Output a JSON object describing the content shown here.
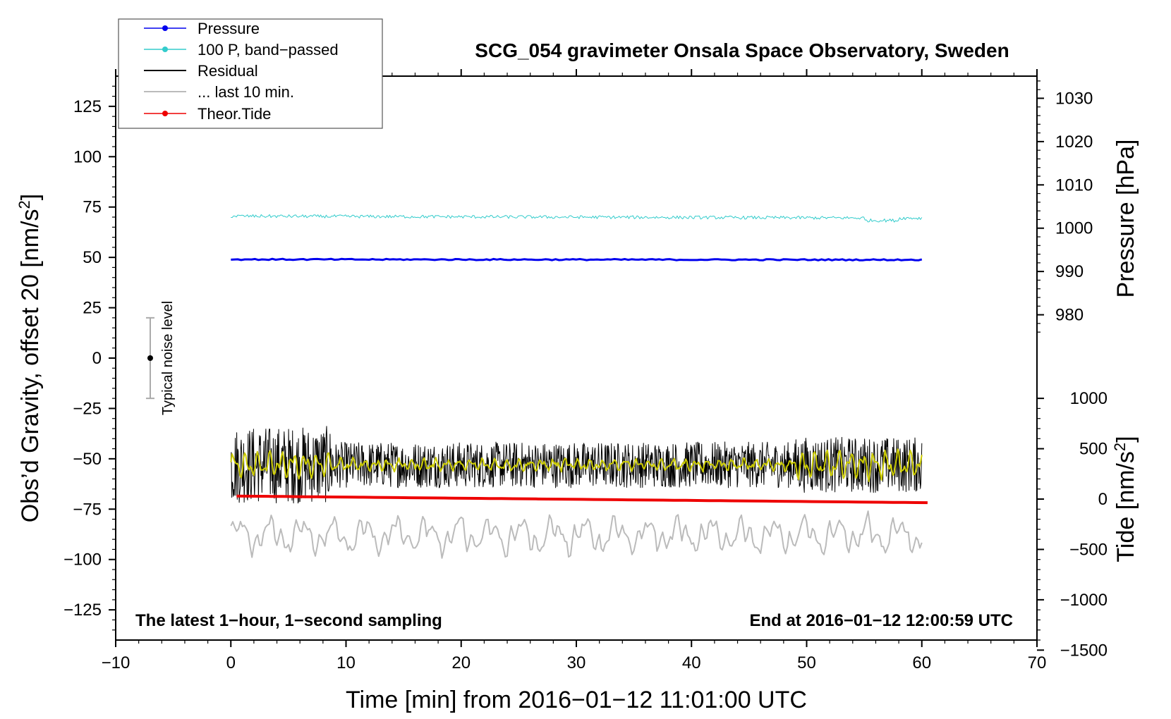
{
  "chart_data": {
    "type": "line",
    "title": "SCG_054 gravimeter Onsala Space Observatory, Sweden",
    "xlabel": "Time [min] from 2016−01−12 11:01:00 UTC",
    "ylabel_left": "Obs’d Gravity, offset 20 [nm/s",
    "ylabel_left_sup": "2",
    "ylabel_left_close": "]",
    "ylabel_pressure": "Pressure [hPa]",
    "ylabel_tide": "Tide [nm/s",
    "ylabel_tide_sup": "2",
    "ylabel_tide_close": "]",
    "xlim": [
      -10,
      70
    ],
    "ylim": [
      -140,
      140
    ],
    "x_ticks": [
      -10,
      0,
      10,
      20,
      30,
      40,
      50,
      60,
      70
    ],
    "x_tick_labels": [
      "−10",
      "0",
      "10",
      "20",
      "30",
      "40",
      "50",
      "60",
      "70"
    ],
    "y_ticks": [
      125,
      100,
      75,
      50,
      25,
      0,
      -25,
      -50,
      -75,
      -100,
      -125
    ],
    "y_tick_labels": [
      "125",
      "100",
      "75",
      "50",
      "25",
      "0",
      "−25",
      "−50",
      "−75",
      "−100",
      "−125"
    ],
    "pressure_axis": {
      "ticks": [
        1030,
        1020,
        1010,
        1000,
        990,
        980
      ],
      "labels": [
        "1030",
        "1020",
        "1010",
        "1000",
        "990",
        "980"
      ],
      "gravity_at_980": 21.5,
      "gravity_per_hpa": 2.15
    },
    "tide_axis": {
      "ticks": [
        1000,
        500,
        0,
        -500,
        -1000,
        -1500
      ],
      "labels": [
        "1000",
        "500",
        "0",
        "−500",
        "−1000",
        "−1500"
      ],
      "gravity_at_0": -70,
      "gravity_per_unit": 0.05
    },
    "series": [
      {
        "name": "Pressure",
        "color": "#0000ee",
        "start": 49.0,
        "end": 48.8,
        "noise": 0.3,
        "width": 3
      },
      {
        "name": "100 P, band−passed",
        "color": "#33cccc",
        "start": 70.5,
        "end": 69.5,
        "noise": 0.8,
        "width": 1
      },
      {
        "name": "Residual",
        "color": "#000000",
        "center": -53,
        "amplitude": 12,
        "width": 1
      },
      {
        "name": "... last 10 min.",
        "color": "#bbbbbb",
        "center": -88,
        "amplitude": 10,
        "width": 2
      },
      {
        "name": "Theor.Tide",
        "color": "#ee0000",
        "start": -68.5,
        "end": -71.8,
        "width": 4
      }
    ],
    "smoothed_residual_color": "#cccc00",
    "noise_indicator": {
      "x": -7,
      "center": 0,
      "half_range": 20,
      "label": "Typical noise level"
    },
    "annotations": {
      "left": "The latest 1−hour, 1−second sampling",
      "right": "End at 2016−01−12 12:00:59 UTC"
    },
    "legend_position": "top-left"
  }
}
